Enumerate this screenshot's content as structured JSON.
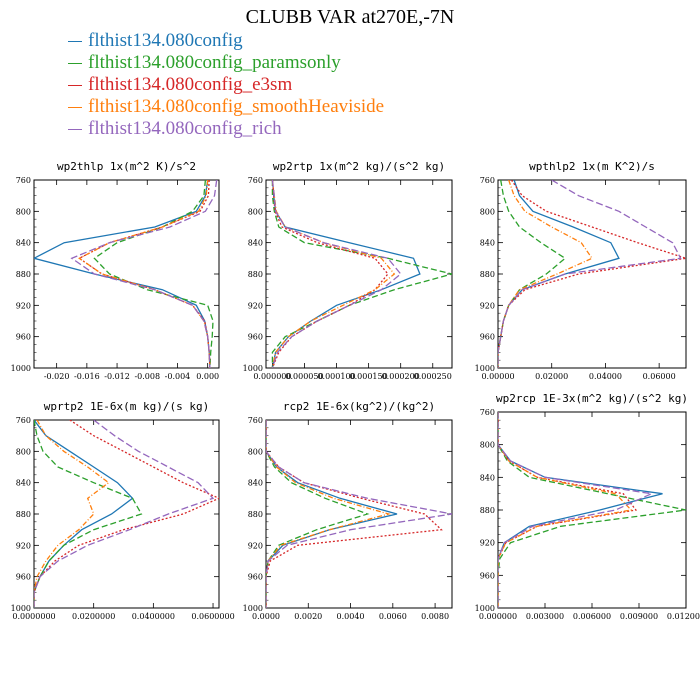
{
  "title": "CLUBB VAR at270E,-7N",
  "series": [
    {
      "name": "flthist134.080config",
      "color": "#1f77b4",
      "dash": ""
    },
    {
      "name": "flthist134.080config_paramsonly",
      "color": "#2ca02c",
      "dash": "6,3"
    },
    {
      "name": "flthist134.080config_e3sm",
      "color": "#d62728",
      "dash": "2,2"
    },
    {
      "name": "flthist134.080config_smoothHeaviside",
      "color": "#ff7f0e",
      "dash": "5,2,1,2"
    },
    {
      "name": "flthist134.080config_rich",
      "color": "#9467bd",
      "dash": "7,3"
    }
  ],
  "chart_data": [
    {
      "type": "line",
      "title": "wp2thlp  1x(m^2 K)/s^2",
      "xlim": [
        -0.023,
        0.0015
      ],
      "ylim": [
        760,
        1000
      ],
      "xticks": [
        "-0.020",
        "-0.016",
        "-0.012",
        "-0.008",
        "-0.004",
        "0.000"
      ],
      "xtick_values": [
        -0.02,
        -0.016,
        -0.012,
        -0.008,
        -0.004,
        0.0
      ],
      "yticks": [
        760,
        800,
        840,
        880,
        920,
        960,
        1000
      ],
      "levels": [
        760,
        780,
        800,
        820,
        840,
        860,
        880,
        900,
        920,
        940,
        960,
        980,
        1000
      ],
      "values": [
        [
          0.0,
          -0.0003,
          -0.0015,
          -0.007,
          -0.019,
          -0.023,
          -0.015,
          -0.006,
          -0.0015,
          -0.0004,
          0.0,
          0.0002,
          0.0003
        ],
        [
          -0.0003,
          -0.0005,
          -0.002,
          -0.006,
          -0.012,
          -0.015,
          -0.013,
          -0.008,
          0.0,
          0.0007,
          0.0006,
          0.0004,
          0.0003
        ],
        [
          0.0002,
          0.0001,
          -0.001,
          -0.006,
          -0.013,
          -0.017,
          -0.014,
          -0.007,
          -0.002,
          -0.0004,
          0.0,
          0.0002,
          0.0003
        ],
        [
          0.0,
          -0.0002,
          -0.0012,
          -0.006,
          -0.013,
          -0.017,
          -0.014,
          -0.007,
          -0.002,
          -0.0005,
          0.0,
          0.0002,
          0.0003
        ],
        [
          0.0012,
          0.0009,
          -0.0003,
          -0.005,
          -0.013,
          -0.018,
          -0.015,
          -0.007,
          -0.002,
          -0.0005,
          0.0,
          0.0002,
          0.0003
        ]
      ]
    },
    {
      "type": "line",
      "title": "wp2rtp  1x(m^2 kg)/(s^2 kg)",
      "xlim": [
        -1e-05,
        0.00028
      ],
      "ylim": [
        760,
        1000
      ],
      "xticks": [
        "0.000000",
        "0.000050",
        "0.000100",
        "0.000150",
        "0.000200",
        "0.000250"
      ],
      "xtick_values": [
        0.0,
        5e-05,
        0.0001,
        0.00015,
        0.0002,
        0.00025
      ],
      "yticks": [
        760,
        800,
        840,
        880,
        920,
        960,
        1000
      ],
      "levels": [
        760,
        780,
        800,
        820,
        840,
        860,
        880,
        900,
        920,
        940,
        960,
        980,
        1000
      ],
      "values": [
        [
          0.0,
          2e-06,
          5e-06,
          2e-05,
          0.00012,
          0.00022,
          0.00023,
          0.00017,
          0.0001,
          6e-05,
          2.5e-05,
          5e-06,
          0.0
        ],
        [
          0.0,
          0.0,
          3e-06,
          1e-05,
          5e-05,
          0.00018,
          0.00028,
          0.00019,
          0.00012,
          7e-05,
          2e-05,
          0.0,
          0.0
        ],
        [
          0.0,
          2e-06,
          4e-06,
          1.5e-05,
          7e-05,
          0.00016,
          0.00018,
          0.00016,
          0.00012,
          7e-05,
          3e-05,
          1e-05,
          0.0
        ],
        [
          0.0,
          3e-06,
          6e-06,
          2e-05,
          8e-05,
          0.00017,
          0.00019,
          0.00016,
          0.00011,
          6e-05,
          2.5e-05,
          5e-06,
          0.0
        ],
        [
          0.0,
          3e-06,
          5e-06,
          2e-05,
          8e-05,
          0.00018,
          0.0002,
          0.00017,
          0.00012,
          7e-05,
          3e-05,
          8e-06,
          0.0
        ]
      ]
    },
    {
      "type": "line",
      "title": "wpthlp2  1x(m K^2)/s",
      "xlim": [
        0.0,
        0.07
      ],
      "ylim": [
        760,
        1000
      ],
      "xticks": [
        "0.00000",
        "0.02000",
        "0.04000",
        "0.06000"
      ],
      "xtick_values": [
        0.0,
        0.02,
        0.04,
        0.06
      ],
      "yticks": [
        760,
        800,
        840,
        880,
        920,
        960,
        1000
      ],
      "levels": [
        760,
        780,
        800,
        820,
        840,
        860,
        880,
        900,
        920,
        940,
        960,
        980,
        1000
      ],
      "values": [
        [
          0.006,
          0.008,
          0.013,
          0.028,
          0.042,
          0.045,
          0.025,
          0.009,
          0.004,
          0.002,
          0.001,
          0.0,
          0.0
        ],
        [
          0.001,
          0.002,
          0.004,
          0.008,
          0.016,
          0.025,
          0.018,
          0.008,
          0.004,
          0.002,
          0.001,
          0.0,
          0.0
        ],
        [
          0.005,
          0.009,
          0.018,
          0.035,
          0.052,
          0.07,
          0.03,
          0.01,
          0.004,
          0.002,
          0.001,
          0.0,
          0.0
        ],
        [
          0.004,
          0.006,
          0.01,
          0.02,
          0.031,
          0.035,
          0.022,
          0.008,
          0.004,
          0.002,
          0.001,
          0.0,
          0.0
        ],
        [
          0.02,
          0.03,
          0.045,
          0.055,
          0.065,
          0.068,
          0.025,
          0.009,
          0.004,
          0.002,
          0.001,
          0.0,
          0.0
        ]
      ]
    },
    {
      "type": "line",
      "title": "wprtp2  1E-6x(m kg)/(s kg)",
      "xlim": [
        0.0,
        0.062
      ],
      "ylim": [
        760,
        1000
      ],
      "xticks": [
        "0.0000000",
        "0.0200000",
        "0.0400000",
        "0.0600000"
      ],
      "xtick_values": [
        0.0,
        0.02,
        0.04,
        0.06
      ],
      "yticks": [
        760,
        800,
        840,
        880,
        920,
        960,
        1000
      ],
      "levels": [
        760,
        780,
        800,
        820,
        840,
        860,
        880,
        900,
        920,
        940,
        960,
        980,
        1000
      ],
      "values": [
        [
          0.0,
          0.004,
          0.012,
          0.02,
          0.028,
          0.033,
          0.026,
          0.016,
          0.01,
          0.005,
          0.002,
          0.0,
          0.0
        ],
        [
          0.0,
          0.001,
          0.003,
          0.008,
          0.02,
          0.033,
          0.036,
          0.02,
          0.01,
          0.005,
          0.002,
          0.0,
          0.0
        ],
        [
          0.012,
          0.02,
          0.03,
          0.04,
          0.05,
          0.062,
          0.05,
          0.03,
          0.015,
          0.007,
          0.002,
          0.0,
          0.0
        ],
        [
          0.001,
          0.004,
          0.01,
          0.018,
          0.025,
          0.018,
          0.02,
          0.015,
          0.008,
          0.004,
          0.001,
          0.0,
          0.0
        ],
        [
          0.02,
          0.027,
          0.035,
          0.045,
          0.055,
          0.06,
          0.045,
          0.032,
          0.018,
          0.008,
          0.002,
          0.0,
          0.0
        ]
      ]
    },
    {
      "type": "line",
      "title": "rcp2  1E-6x(kg^2)/(kg^2)",
      "xlim": [
        0.0,
        0.0088
      ],
      "ylim": [
        760,
        1000
      ],
      "xticks": [
        "0.0000",
        "0.0020",
        "0.0040",
        "0.0060",
        "0.0080"
      ],
      "xtick_values": [
        0.0,
        0.002,
        0.004,
        0.006,
        0.008
      ],
      "yticks": [
        760,
        800,
        840,
        880,
        920,
        960,
        1000
      ],
      "levels": [
        760,
        780,
        800,
        820,
        840,
        860,
        880,
        900,
        920,
        940,
        960,
        980,
        1000
      ],
      "values": [
        [
          0.0,
          0.0,
          0.0,
          0.0005,
          0.0015,
          0.0035,
          0.0062,
          0.003,
          0.0008,
          0.0001,
          0.0,
          0.0,
          0.0
        ],
        [
          0.0,
          0.0,
          0.0,
          0.0004,
          0.0012,
          0.0028,
          0.0048,
          0.0024,
          0.0006,
          0.0001,
          0.0,
          0.0,
          0.0
        ],
        [
          0.0,
          0.0,
          0.0,
          0.0006,
          0.0018,
          0.0045,
          0.0075,
          0.0083,
          0.0015,
          0.0002,
          0.0,
          0.0,
          0.0
        ],
        [
          0.0,
          0.0,
          0.0,
          0.0005,
          0.0014,
          0.0032,
          0.0058,
          0.003,
          0.0007,
          0.0001,
          0.0,
          0.0,
          0.0
        ],
        [
          0.0,
          0.0,
          0.0,
          0.0006,
          0.0018,
          0.0048,
          0.0088,
          0.004,
          0.001,
          0.0001,
          0.0,
          0.0,
          0.0
        ]
      ]
    },
    {
      "type": "line",
      "title": "wp2rcp  1E-3x(m^2 kg)/(s^2 kg)",
      "xlim": [
        0.0,
        0.012
      ],
      "ylim": [
        760,
        1000
      ],
      "xticks": [
        "0.000000",
        "0.003000",
        "0.006000",
        "0.009000",
        "0.012000"
      ],
      "xtick_values": [
        0.0,
        0.003,
        0.006,
        0.009,
        0.012
      ],
      "yticks": [
        760,
        800,
        840,
        880,
        920,
        960,
        1000
      ],
      "levels": [
        760,
        780,
        800,
        820,
        840,
        860,
        880,
        900,
        920,
        940,
        960,
        980,
        1000
      ],
      "values": [
        [
          0.0,
          0.0,
          0.0,
          0.0008,
          0.003,
          0.0105,
          0.0065,
          0.002,
          0.0004,
          0.0,
          0.0,
          0.0,
          0.0
        ],
        [
          0.0,
          0.0,
          0.0,
          0.0006,
          0.002,
          0.007,
          0.012,
          0.004,
          0.0008,
          0.0001,
          0.0,
          0.0,
          0.0
        ],
        [
          0.0,
          0.0,
          0.0,
          0.0007,
          0.0025,
          0.008,
          0.0088,
          0.0025,
          0.0005,
          0.0,
          0.0,
          0.0,
          0.0
        ],
        [
          0.0,
          0.0,
          0.0,
          0.0007,
          0.0025,
          0.0075,
          0.0085,
          0.0025,
          0.0005,
          0.0,
          0.0,
          0.0,
          0.0
        ],
        [
          0.0,
          0.0,
          0.0,
          0.0008,
          0.003,
          0.0098,
          0.0075,
          0.0022,
          0.0004,
          0.0,
          0.0,
          0.0,
          0.0
        ]
      ]
    }
  ]
}
